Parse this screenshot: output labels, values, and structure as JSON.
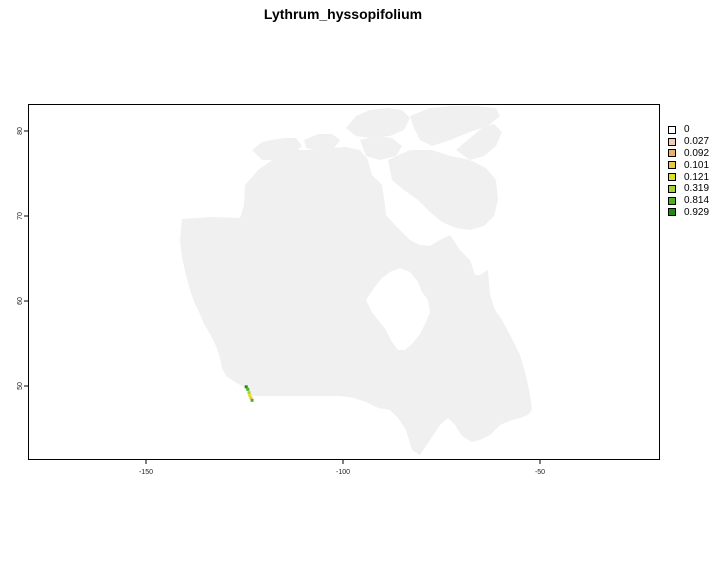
{
  "title": "Lythrum_hyssopifolium",
  "axes": {
    "x_ticks": [
      "-150",
      "-100",
      "-50"
    ],
    "y_ticks": [
      "80",
      "70",
      "60",
      "50"
    ]
  },
  "colors": {
    "land": "#f0f0f0",
    "background": "#ffffff",
    "frame": "#000000"
  },
  "legend": {
    "items": [
      {
        "label": "0",
        "color": "#ffffff"
      },
      {
        "label": "0.027",
        "color": "#f2cbb8"
      },
      {
        "label": "0.092",
        "color": "#ebb06a"
      },
      {
        "label": "0.101",
        "color": "#e8c84a"
      },
      {
        "label": "0.121",
        "color": "#dde026"
      },
      {
        "label": "0.319",
        "color": "#a6d12e"
      },
      {
        "label": "0.814",
        "color": "#4fb01f"
      },
      {
        "label": "0.929",
        "color": "#1f8a14"
      }
    ]
  },
  "chart_data": {
    "type": "heatmap",
    "title": "Lythrum_hyssopifolium",
    "xlim": [
      -180,
      -20
    ],
    "ylim": [
      41,
      83
    ],
    "x_ticks": [
      -150,
      -100,
      -50
    ],
    "y_ticks": [
      80,
      70,
      60,
      50
    ],
    "legend_position": "right",
    "occurrence_cells": [
      {
        "lon": -124.8,
        "lat": 49.6,
        "value": 0.929
      },
      {
        "lon": -124.4,
        "lat": 49.3,
        "value": 0.814
      },
      {
        "lon": -124.1,
        "lat": 48.9,
        "value": 0.319
      },
      {
        "lon": -123.9,
        "lat": 48.6,
        "value": 0.121
      },
      {
        "lon": -123.6,
        "lat": 48.3,
        "value": 0.101
      },
      {
        "lon": -123.3,
        "lat": 48.0,
        "value": 0.814
      }
    ]
  }
}
